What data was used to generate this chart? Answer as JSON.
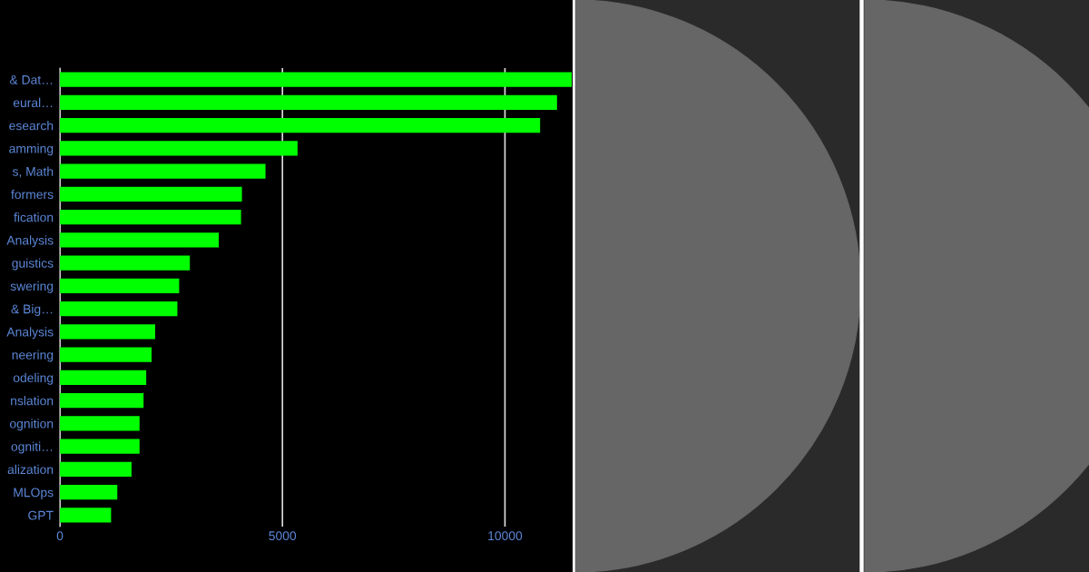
{
  "chart_data": {
    "type": "bar",
    "orientation": "horizontal",
    "categories": [
      "& Dat…",
      "eural…",
      "esearch",
      "amming",
      "s, Math",
      "formers",
      "fication",
      "Analysis",
      "guistics",
      "swering",
      "& Big…",
      "Analysis",
      "neering",
      "odeling",
      "nslation",
      "ognition",
      "ogniti…",
      "alization",
      "MLOps",
      "GPT"
    ],
    "values": [
      11500,
      11170,
      10790,
      5340,
      4620,
      4090,
      4070,
      3570,
      2920,
      2680,
      2640,
      2140,
      2060,
      1940,
      1880,
      1790,
      1790,
      1610,
      1290,
      1150
    ],
    "color": "#00ff00",
    "xlim": [
      0,
      11500
    ],
    "xticks": [
      0,
      5000,
      10000
    ],
    "grid": "x",
    "legend": false
  }
}
